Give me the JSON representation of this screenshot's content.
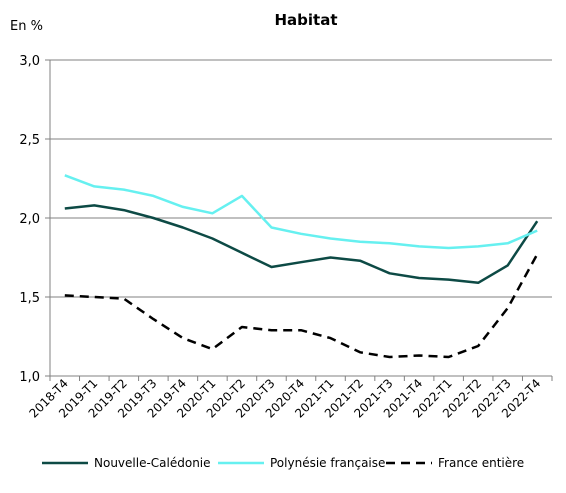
{
  "chart_data": {
    "type": "line",
    "title": "Habitat",
    "ylabel": "En %",
    "xlabel": "",
    "ylim": [
      1.0,
      3.0
    ],
    "yticks": [
      "1,0",
      "1,5",
      "2,0",
      "2,5",
      "3,0"
    ],
    "ytick_values": [
      1.0,
      1.5,
      2.0,
      2.5,
      3.0
    ],
    "grid": "horizontal",
    "legend_position": "bottom",
    "categories": [
      "2018-T4",
      "2019-T1",
      "2019-T2",
      "2019-T3",
      "2019-T4",
      "2020-T1",
      "2020-T2",
      "2020-T3",
      "2020-T4",
      "2021-T1",
      "2021-T2",
      "2021-T3",
      "2021-T4",
      "2022-T1",
      "2022-T2",
      "2022-T3",
      "2022-T4"
    ],
    "series": [
      {
        "name": "Nouvelle-Calédonie",
        "color": "#0d4a45",
        "style": "solid",
        "values": [
          2.06,
          2.08,
          2.05,
          2.0,
          1.94,
          1.87,
          1.78,
          1.69,
          1.72,
          1.75,
          1.73,
          1.65,
          1.62,
          1.61,
          1.59,
          1.7,
          1.98
        ]
      },
      {
        "name": "Polynésie française",
        "color": "#66f0f0",
        "style": "solid",
        "values": [
          2.27,
          2.2,
          2.18,
          2.14,
          2.07,
          2.03,
          2.14,
          1.94,
          1.9,
          1.87,
          1.85,
          1.84,
          1.82,
          1.81,
          1.82,
          1.84,
          1.92
        ]
      },
      {
        "name": "France entière",
        "color": "#000000",
        "style": "dashed",
        "values": [
          1.51,
          1.5,
          1.49,
          1.36,
          1.24,
          1.17,
          1.31,
          1.29,
          1.29,
          1.24,
          1.15,
          1.12,
          1.13,
          1.12,
          1.19,
          1.43,
          1.77
        ]
      }
    ]
  }
}
